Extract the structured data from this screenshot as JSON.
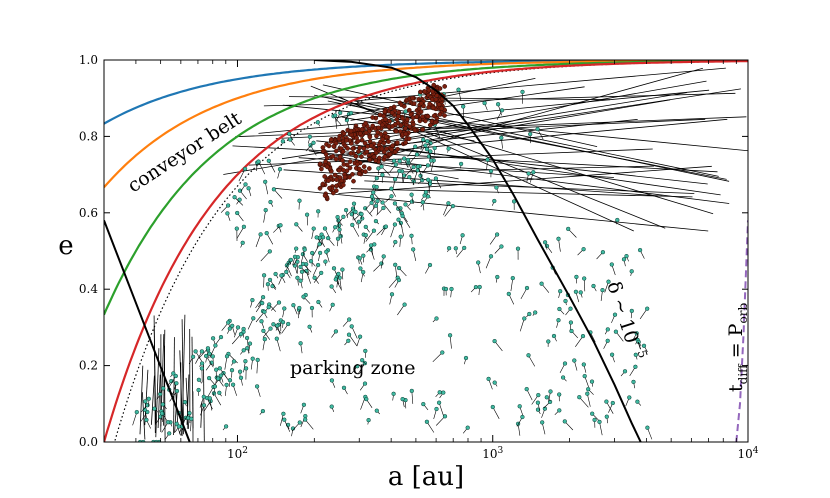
{
  "chart_data": {
    "type": "scatter",
    "xlabel": "a [au]",
    "ylabel": "e",
    "xscale": "log",
    "xlim": [
      30,
      10000
    ],
    "ylim": [
      0,
      1
    ],
    "xticks": [
      {
        "value": 100,
        "label": "10",
        "exp": "2"
      },
      {
        "value": 1000,
        "label": "10",
        "exp": "3"
      },
      {
        "value": 10000,
        "label": "10",
        "exp": "4"
      }
    ],
    "yticks": [
      {
        "value": 0.0,
        "label": "0.0"
      },
      {
        "value": 0.2,
        "label": "0.2"
      },
      {
        "value": 0.4,
        "label": "0.4"
      },
      {
        "value": 0.6,
        "label": "0.6"
      },
      {
        "value": 0.8,
        "label": "0.8"
      },
      {
        "value": 1.0,
        "label": "1.0"
      }
    ],
    "grid": false,
    "annotations": [
      {
        "text": "conveyor belt"
      },
      {
        "text": "parking zone"
      },
      {
        "text": "δ ∼ 10",
        "exp": "−5"
      },
      {
        "text": "t",
        "sub": "diff",
        "text2": " = P",
        "sub2": "orb"
      }
    ],
    "colors": {
      "blue": "#1f77b4",
      "orange": "#ff7f0e",
      "green": "#2ca02c",
      "red": "#d62728",
      "purple": "#9467bd",
      "teal": "#3fb8a0",
      "brown": "#7a1f0e"
    },
    "curves": [
      {
        "color": "blue",
        "q": 5.0
      },
      {
        "color": "orange",
        "q": 10.0
      },
      {
        "color": "green",
        "q": 20.0
      },
      {
        "color": "red",
        "q": 30.0
      }
    ],
    "dotted_curve": {
      "q": 33.0
    },
    "left_black_line": [
      [
        30,
        0.58
      ],
      [
        65,
        0.0
      ]
    ],
    "delta_curve": [
      [
        200,
        1.0
      ],
      [
        280,
        0.995
      ],
      [
        400,
        0.98
      ],
      [
        500,
        0.955
      ],
      [
        600,
        0.92
      ],
      [
        700,
        0.88
      ],
      [
        800,
        0.83
      ],
      [
        1000,
        0.74
      ],
      [
        1200,
        0.65
      ],
      [
        1500,
        0.53
      ],
      [
        2000,
        0.38
      ],
      [
        2500,
        0.26
      ],
      [
        3000,
        0.15
      ],
      [
        3500,
        0.05
      ],
      [
        3800,
        0.0
      ]
    ],
    "tdiff_curve": [
      [
        9000,
        0.0
      ],
      [
        9300,
        0.1
      ],
      [
        9600,
        0.28
      ],
      [
        10000,
        0.58
      ]
    ],
    "clusters": [
      {
        "name": "brown",
        "a_range": [
          210,
          650
        ],
        "e_range": [
          0.63,
          0.97
        ],
        "count": 420
      },
      {
        "name": "teal",
        "a_range": [
          40,
          4200
        ],
        "e_range": [
          0.0,
          0.97
        ],
        "count": 520
      }
    ]
  }
}
